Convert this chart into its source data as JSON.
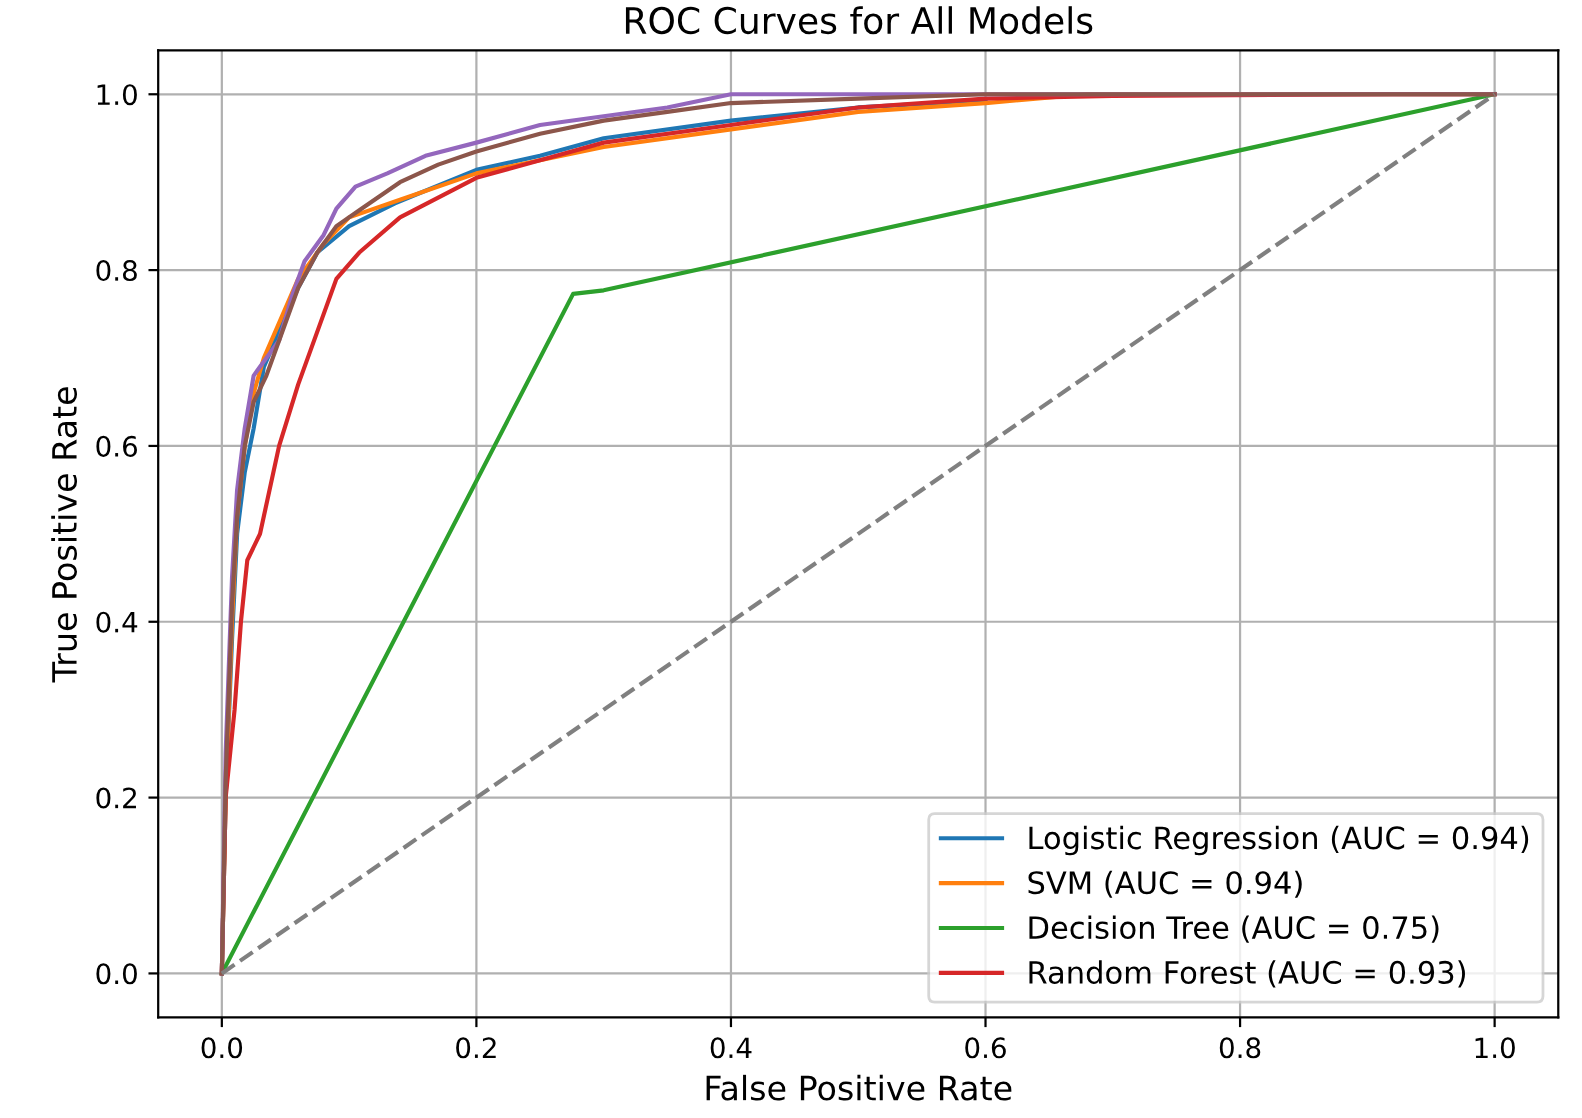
{
  "chart_data": {
    "type": "line",
    "title": "ROC Curves for All Models",
    "xlabel": "False Positive Rate",
    "ylabel": "True Positive Rate",
    "xlim": [
      -0.05,
      1.05
    ],
    "ylim": [
      -0.05,
      1.05
    ],
    "xticks": [
      {
        "value": 0,
        "label": "0.0"
      },
      {
        "value": 0.2,
        "label": "0.2"
      },
      {
        "value": 0.4,
        "label": "0.4"
      },
      {
        "value": 0.6,
        "label": "0.6"
      },
      {
        "value": 0.8,
        "label": "0.8"
      },
      {
        "value": 1,
        "label": "1.0"
      }
    ],
    "yticks": [
      {
        "value": 0,
        "label": "0.0"
      },
      {
        "value": 0.2,
        "label": "0.2"
      },
      {
        "value": 0.4,
        "label": "0.4"
      },
      {
        "value": 0.6,
        "label": "0.6"
      },
      {
        "value": 0.8,
        "label": "0.8"
      },
      {
        "value": 1,
        "label": "1.0"
      }
    ],
    "grid": true,
    "legend": "bottom right",
    "series": [
      {
        "name": "Logistic Regression (AUC = 0.94)",
        "color": "#1f77b4",
        "x": [
          0,
          0.003,
          0.008,
          0.012,
          0.018,
          0.025,
          0.033,
          0.045,
          0.06,
          0.075,
          0.1,
          0.136,
          0.2,
          0.25,
          0.3,
          0.4,
          0.5,
          0.6
        ],
        "values": [
          0,
          0.2,
          0.38,
          0.5,
          0.57,
          0.62,
          0.69,
          0.73,
          0.78,
          0.82,
          0.85,
          0.876,
          0.914,
          0.93,
          0.95,
          0.97,
          0.985,
          0.993
        ]
      },
      {
        "name": "SVM (AUC = 0.94)",
        "color": "#ff7f0e",
        "x": [
          0,
          0.003,
          0.008,
          0.012,
          0.018,
          0.025,
          0.033,
          0.045,
          0.06,
          0.08,
          0.1,
          0.14,
          0.2,
          0.25,
          0.3,
          0.4,
          0.5,
          0.6,
          0.68,
          1
        ],
        "values": [
          0,
          0.2,
          0.4,
          0.52,
          0.6,
          0.66,
          0.7,
          0.74,
          0.79,
          0.83,
          0.86,
          0.88,
          0.91,
          0.925,
          0.94,
          0.96,
          0.98,
          0.99,
          1,
          1
        ]
      },
      {
        "name": "Decision Tree (AUC = 0.75)",
        "color": "#2ca02c",
        "x": [
          0,
          0.276,
          0.3,
          1
        ],
        "values": [
          0,
          0.773,
          0.777,
          1
        ]
      },
      {
        "name": "Random Forest (AUC = 0.93)",
        "color": "#d62728",
        "x": [
          0,
          0.003,
          0.01,
          0.015,
          0.02,
          0.03,
          0.045,
          0.06,
          0.075,
          0.09,
          0.108,
          0.14,
          0.2,
          0.25,
          0.3,
          0.4,
          0.5,
          0.6,
          0.7,
          0.92,
          1
        ],
        "values": [
          0,
          0.2,
          0.3,
          0.4,
          0.47,
          0.5,
          0.6,
          0.67,
          0.73,
          0.79,
          0.82,
          0.86,
          0.905,
          0.925,
          0.945,
          0.965,
          0.985,
          0.995,
          0.998,
          1,
          1
        ]
      },
      {
        "color": "#9467bd",
        "x": [
          0,
          0.003,
          0.008,
          0.012,
          0.018,
          0.025,
          0.035,
          0.045,
          0.055,
          0.065,
          0.08,
          0.09,
          0.105,
          0.13,
          0.16,
          0.2,
          0.25,
          0.3,
          0.35,
          0.4,
          0.5,
          1
        ],
        "values": [
          0,
          0.25,
          0.45,
          0.55,
          0.62,
          0.68,
          0.7,
          0.72,
          0.77,
          0.81,
          0.84,
          0.87,
          0.895,
          0.91,
          0.93,
          0.945,
          0.965,
          0.975,
          0.985,
          1,
          1,
          1
        ]
      },
      {
        "color": "#8c564b",
        "x": [
          0,
          0.003,
          0.008,
          0.012,
          0.018,
          0.025,
          0.035,
          0.045,
          0.06,
          0.075,
          0.09,
          0.11,
          0.14,
          0.17,
          0.2,
          0.25,
          0.3,
          0.35,
          0.4,
          0.5,
          0.6,
          1
        ],
        "values": [
          0,
          0.22,
          0.42,
          0.52,
          0.6,
          0.65,
          0.68,
          0.72,
          0.78,
          0.82,
          0.85,
          0.87,
          0.9,
          0.92,
          0.935,
          0.955,
          0.97,
          0.98,
          0.99,
          0.995,
          1,
          1
        ]
      },
      {
        "color": "#808080",
        "line_style": "dashed",
        "x": [
          0,
          1
        ],
        "values": [
          0,
          1
        ]
      }
    ]
  }
}
